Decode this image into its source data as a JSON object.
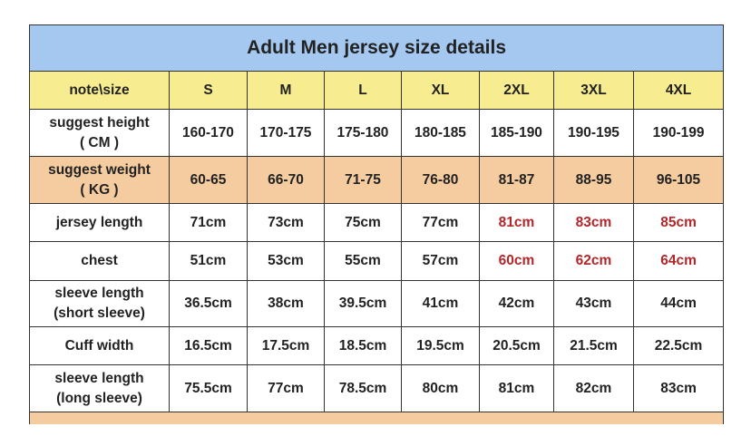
{
  "title": "Adult Men jersey size details",
  "header": {
    "corner_label": "note\\size",
    "sizes": [
      "S",
      "M",
      "L",
      "XL",
      "2XL",
      "3XL",
      "4XL"
    ]
  },
  "colors": {
    "title_bg": "#a4c8f0",
    "header_bg": "#f8ec90",
    "weight_row_bg": "#f5cca0",
    "highlight_text": "#b3262a"
  },
  "rows": [
    {
      "label": [
        "suggest height",
        "( CM )"
      ],
      "values": [
        "160-170",
        "170-175",
        "175-180",
        "180-185",
        "185-190",
        "190-195",
        "190-199"
      ]
    },
    {
      "label": [
        "suggest weight",
        "( KG )"
      ],
      "values": [
        "60-65",
        "66-70",
        "71-75",
        "76-80",
        "81-87",
        "88-95",
        "96-105"
      ]
    },
    {
      "label": [
        "jersey length"
      ],
      "values": [
        "71cm",
        "73cm",
        "75cm",
        "77cm",
        "81cm",
        "83cm",
        "85cm"
      ]
    },
    {
      "label": [
        "chest"
      ],
      "values": [
        "51cm",
        "53cm",
        "55cm",
        "57cm",
        "60cm",
        "62cm",
        "64cm"
      ]
    },
    {
      "label": [
        "sleeve length",
        "(short sleeve)"
      ],
      "values": [
        "36.5cm",
        "38cm",
        "39.5cm",
        "41cm",
        "42cm",
        "43cm",
        "44cm"
      ]
    },
    {
      "label": [
        "Cuff width"
      ],
      "values": [
        "16.5cm",
        "17.5cm",
        "18.5cm",
        "19.5cm",
        "20.5cm",
        "21.5cm",
        "22.5cm"
      ]
    },
    {
      "label": [
        "sleeve length",
        "(long sleeve)"
      ],
      "values": [
        "75.5cm",
        "77cm",
        "78.5cm",
        "80cm",
        "81cm",
        "82cm",
        "83cm"
      ]
    }
  ]
}
